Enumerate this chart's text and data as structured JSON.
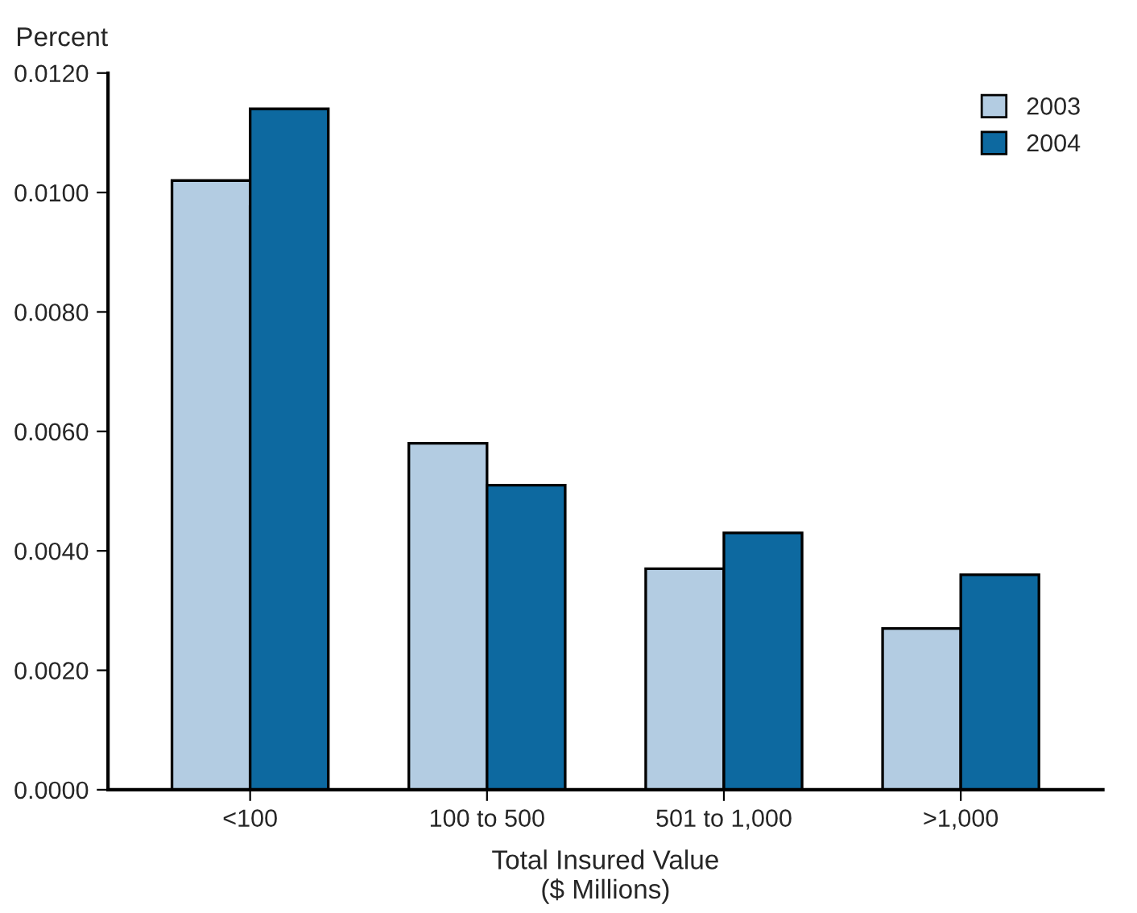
{
  "chart_data": {
    "type": "bar",
    "ylabel": "Percent",
    "xlabel": "Total Insured Value\n($ Millions)",
    "categories": [
      "<100",
      "100 to 500",
      "501 to 1,000",
      ">1,000"
    ],
    "series": [
      {
        "name": "2003",
        "color": "#b3cce2",
        "values": [
          0.0102,
          0.0058,
          0.0037,
          0.0027
        ]
      },
      {
        "name": "2004",
        "color": "#0d69a0",
        "values": [
          0.0114,
          0.0051,
          0.0043,
          0.0036
        ]
      }
    ],
    "ylim": [
      0,
      0.012
    ],
    "yticks": [
      {
        "value": 0,
        "label": "0.0000"
      },
      {
        "value": 0.002,
        "label": "0.0020"
      },
      {
        "value": 0.004,
        "label": "0.0040"
      },
      {
        "value": 0.006,
        "label": "0.0060"
      },
      {
        "value": 0.008,
        "label": "0.0080"
      },
      {
        "value": 0.01,
        "label": "0.0100"
      },
      {
        "value": 0.012,
        "label": "0.0120"
      }
    ],
    "grid": false,
    "legend": "top right"
  }
}
